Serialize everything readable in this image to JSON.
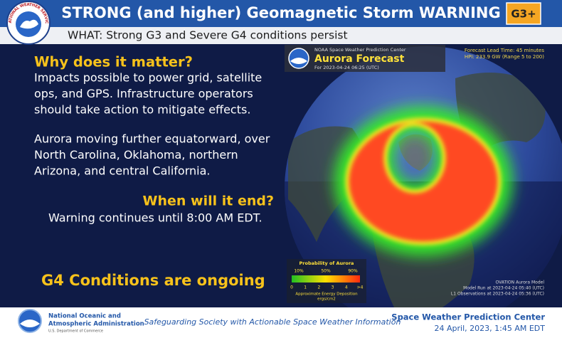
{
  "header": {
    "title": "STRONG (and higher) Geomagnetic Storm WARNING",
    "badge": "G3+",
    "subtitle": "WHAT: Strong G3 and Severe G4 conditions persist",
    "logo_text": "NATIONAL WEATHER SERVICE"
  },
  "left": {
    "heading_1": "Why does it matter?",
    "paragraph_1": [
      "Impacts possible to power grid, satellite",
      "ops, and GPS. Infrastructure operators",
      "should take action to mitigate effects."
    ],
    "paragraph_2": [
      "Aurora moving further equatorward, over",
      "North Carolina, Oklahoma, northern",
      "Arizona, and central California."
    ],
    "heading_2": "When will it end?",
    "warning_text": "Warning continues until 8:00 AM EDT.",
    "callout": "G4 Conditions are ongoing"
  },
  "map": {
    "agency": "NOAA Space Weather Prediction Center",
    "title": "Aurora Forecast",
    "valid_time": "For 2023-04-24 06:25 (UTC)",
    "lead_time": "Forecast Lead Time:  45 minutes",
    "hpi": "HPI: 233.9 GW (Range 5 to 200)",
    "legend": {
      "title": "Probability of Aurora",
      "probability_labels": [
        "10%",
        "50%",
        "90%"
      ],
      "energy_labels": [
        "0",
        "1",
        "2",
        "3",
        "4",
        ">4"
      ],
      "energy_caption": "Approximate Energy Deposition",
      "energy_units": "ergs/cm2"
    },
    "model": "OVATION Aurora Model",
    "model_run": "Model Run at 2023-04-24 05:40 (UTC)",
    "observations": "L1 Observations at 2023-04-24 05:36 (UTC)"
  },
  "footer": {
    "noaa_line_1": "National Oceanic and",
    "noaa_line_2": "Atmospheric Administration",
    "noaa_dept": "U.S. Department of Commerce",
    "tagline": "Safeguarding Society with Actionable Space Weather Information",
    "center": "Space Weather Prediction Center",
    "date": "24 April, 2023, 1:45 AM EDT"
  }
}
